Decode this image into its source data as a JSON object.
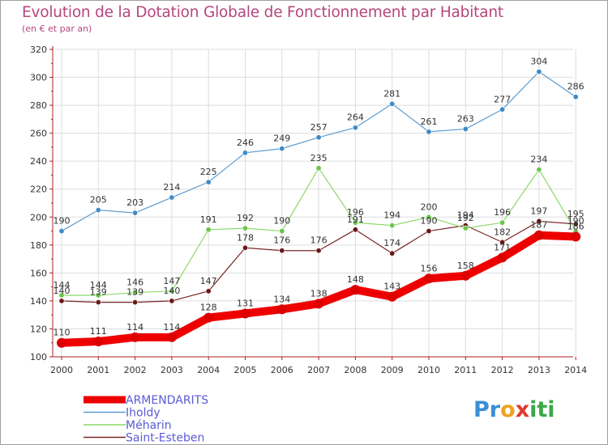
{
  "title": "Evolution de la Dotation Globale de Fonctionnement par Habitant",
  "subtitle": "(en € et par an)",
  "logo": {
    "letters": [
      "P",
      "r",
      "o",
      "x",
      "i",
      "t",
      "i"
    ],
    "colors": [
      "#3a8fd4",
      "#3a8fd4",
      "#f0a020",
      "#e03a2a",
      "#39a84a",
      "#39a84a",
      "#39a84a"
    ]
  },
  "colors": {
    "title": "#b6467f",
    "axis": "#aa2222",
    "grid": "#dddddd",
    "legend_text": "#5b5bd6"
  },
  "chart_data": {
    "type": "line",
    "title": "Evolution de la Dotation Globale de Fonctionnement par Habitant",
    "subtitle": "(en € et par an)",
    "x": [
      2000,
      2001,
      2002,
      2003,
      2004,
      2005,
      2006,
      2007,
      2008,
      2009,
      2010,
      2011,
      2012,
      2013,
      2014
    ],
    "ylim": [
      100,
      320
    ],
    "yticks": [
      100,
      120,
      140,
      160,
      180,
      200,
      220,
      240,
      260,
      280,
      300,
      320
    ],
    "grid": true,
    "legend_position": "bottom-left",
    "series": [
      {
        "name": "ARMENDARITS",
        "color": "#ee0000",
        "marker": "#dd0000",
        "width": 10,
        "values": [
          110,
          111,
          114,
          114,
          128,
          131,
          134,
          138,
          148,
          143,
          156,
          158,
          171,
          187,
          186
        ]
      },
      {
        "name": "Iholdy",
        "color": "#5a9bd0",
        "marker": "#3f8ac6",
        "width": 1.2,
        "values": [
          190,
          205,
          203,
          214,
          225,
          246,
          249,
          257,
          264,
          281,
          261,
          263,
          277,
          304,
          286
        ]
      },
      {
        "name": "Méharin",
        "color": "#8bd86a",
        "marker": "#6cc44a",
        "width": 1.2,
        "values": [
          144,
          144,
          146,
          147,
          191,
          192,
          190,
          235,
          196,
          194,
          200,
          192,
          196,
          234,
          190
        ]
      },
      {
        "name": "Saint-Esteben",
        "color": "#7a2525",
        "marker": "#6a1818",
        "width": 1.2,
        "values": [
          140,
          139,
          139,
          140,
          147,
          178,
          176,
          176,
          191,
          174,
          190,
          194,
          182,
          197,
          195
        ]
      }
    ]
  }
}
